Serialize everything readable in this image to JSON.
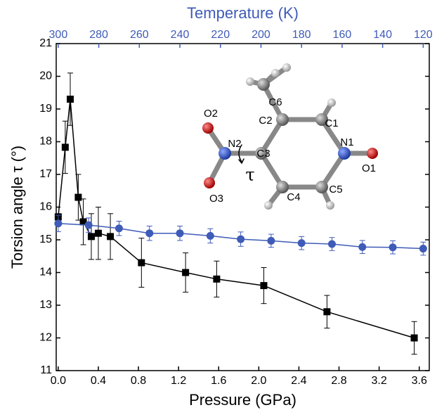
{
  "chart_data": {
    "type": "line",
    "xlabel": "Pressure (GPa)",
    "x2label": "Temperature (K)",
    "ylabel": "Torsion angle τ (°)",
    "xlim": [
      -0.02,
      3.7
    ],
    "xticks": [
      {
        "value": 0,
        "label": "0.0"
      },
      0.4,
      0.8,
      1.2,
      1.6,
      {
        "value": 2,
        "label": "2.0"
      },
      2.4,
      2.8,
      3.2,
      3.6
    ],
    "x2lim": [
      301,
      117
    ],
    "x2ticks": [
      300,
      280,
      260,
      240,
      220,
      200,
      180,
      160,
      140,
      120
    ],
    "ylim": [
      11,
      21
    ],
    "yticks": [
      11,
      12,
      13,
      14,
      15,
      16,
      17,
      18,
      19,
      20,
      21
    ],
    "series": [
      {
        "color": "#000000",
        "marker": "square",
        "x": [
          0.0,
          0.07,
          0.12,
          0.2,
          0.25,
          0.33,
          0.4,
          0.52,
          0.83,
          1.27,
          1.58,
          2.05,
          2.68,
          3.55
        ],
        "values": [
          15.7,
          17.83,
          19.3,
          16.3,
          15.55,
          15.1,
          15.2,
          15.1,
          14.3,
          14.0,
          13.8,
          13.6,
          12.8,
          12.0
        ],
        "errors": [
          0.1,
          0.8,
          0.8,
          0.7,
          0.7,
          0.7,
          0.8,
          0.7,
          0.75,
          0.6,
          0.55,
          0.55,
          0.5,
          0.5
        ]
      },
      {
        "color": "#3f5bb8",
        "marker": "circle",
        "axis": "x2",
        "x": [
          300,
          285,
          270,
          255,
          240,
          225,
          210,
          195,
          180,
          165,
          150,
          135,
          120
        ],
        "values": [
          15.5,
          15.45,
          15.35,
          15.2,
          15.2,
          15.12,
          15.02,
          14.97,
          14.9,
          14.87,
          14.78,
          14.77,
          14.73
        ],
        "errors": [
          0.25,
          0.22,
          0.22,
          0.22,
          0.22,
          0.22,
          0.22,
          0.2,
          0.2,
          0.2,
          0.2,
          0.2,
          0.2
        ]
      }
    ],
    "annotations": [
      "C6",
      "C2",
      "C1",
      "O2",
      "N2",
      "C3",
      "N1",
      "O1",
      "O3",
      "C4",
      "C5",
      "τ"
    ]
  }
}
